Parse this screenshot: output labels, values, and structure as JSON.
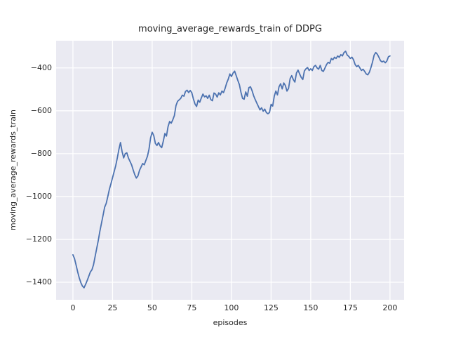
{
  "figure": {
    "title": "moving_average_rewards_train of DDPG",
    "xlabel": "episodes",
    "ylabel": "moving_average_rewards_train"
  },
  "chart_data": {
    "type": "line",
    "title": "moving_average_rewards_train of DDPG",
    "xlabel": "episodes",
    "ylabel": "moving_average_rewards_train",
    "x_ticks": [
      0,
      25,
      50,
      75,
      100,
      125,
      150,
      175,
      200
    ],
    "y_ticks": [
      -400,
      -600,
      -800,
      -1000,
      -1200,
      -1400
    ],
    "xlim": [
      -10.6,
      208.9
    ],
    "ylim": [
      -1482,
      -273
    ],
    "grid": true,
    "legend_position": "none",
    "colors": {
      "axes_background": "#eaeaf2",
      "grid": "#ffffff",
      "line": "#4c72b0",
      "text": "#262626",
      "figure_background": "#ffffff"
    },
    "series": [
      {
        "name": "moving_average_rewards_train",
        "x0": 0,
        "dx": 1,
        "values": [
          -1272,
          -1290,
          -1320,
          -1352,
          -1380,
          -1402,
          -1418,
          -1426,
          -1410,
          -1392,
          -1372,
          -1352,
          -1342,
          -1318,
          -1280,
          -1242,
          -1205,
          -1162,
          -1125,
          -1088,
          -1050,
          -1032,
          -1000,
          -966,
          -940,
          -912,
          -884,
          -856,
          -820,
          -780,
          -748,
          -790,
          -820,
          -800,
          -796,
          -820,
          -836,
          -852,
          -876,
          -898,
          -914,
          -904,
          -878,
          -862,
          -846,
          -852,
          -832,
          -812,
          -778,
          -726,
          -700,
          -716,
          -752,
          -762,
          -748,
          -764,
          -772,
          -742,
          -706,
          -718,
          -674,
          -650,
          -658,
          -642,
          -622,
          -576,
          -556,
          -549,
          -542,
          -527,
          -532,
          -510,
          -504,
          -515,
          -505,
          -516,
          -545,
          -568,
          -580,
          -550,
          -560,
          -540,
          -522,
          -535,
          -530,
          -542,
          -527,
          -548,
          -553,
          -517,
          -522,
          -536,
          -516,
          -526,
          -508,
          -515,
          -495,
          -470,
          -452,
          -428,
          -440,
          -424,
          -415,
          -436,
          -458,
          -478,
          -514,
          -542,
          -546,
          -512,
          -532,
          -492,
          -488,
          -506,
          -530,
          -548,
          -564,
          -580,
          -596,
          -586,
          -602,
          -592,
          -608,
          -614,
          -608,
          -570,
          -578,
          -532,
          -508,
          -526,
          -488,
          -474,
          -498,
          -470,
          -482,
          -508,
          -496,
          -450,
          -436,
          -454,
          -466,
          -424,
          -410,
          -428,
          -444,
          -454,
          -414,
          -404,
          -398,
          -412,
          -404,
          -412,
          -394,
          -388,
          -400,
          -406,
          -388,
          -412,
          -416,
          -400,
          -384,
          -374,
          -378,
          -356,
          -362,
          -350,
          -356,
          -344,
          -350,
          -338,
          -344,
          -328,
          -322,
          -340,
          -346,
          -356,
          -350,
          -362,
          -384,
          -394,
          -388,
          -400,
          -412,
          -406,
          -416,
          -428,
          -432,
          -420,
          -398,
          -372,
          -340,
          -328,
          -336,
          -350,
          -366,
          -372,
          -368,
          -376,
          -368,
          -348,
          -344
        ]
      }
    ]
  }
}
